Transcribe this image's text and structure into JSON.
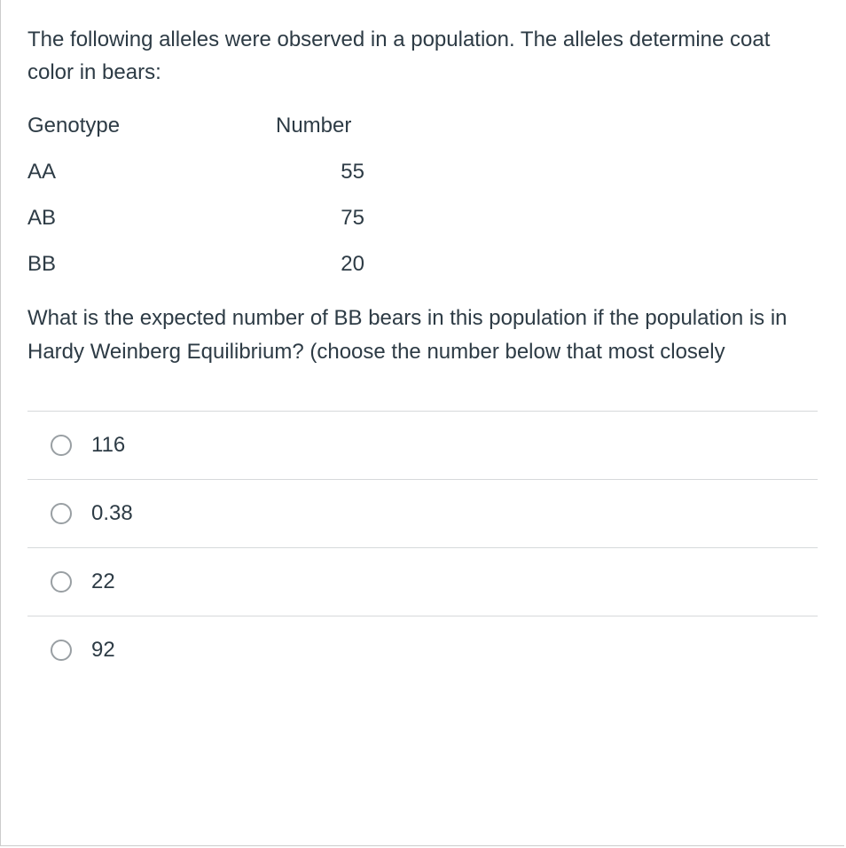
{
  "question": {
    "intro": "The following alleles were observed in a population.  The alleles determine coat color in bears:",
    "followup": "What is the expected number of BB bears in this population if the population is in Hardy Weinberg Equilibrium?   (choose the number below that most closely"
  },
  "table": {
    "headers": {
      "genotype": "Genotype",
      "number": "Number"
    },
    "rows": [
      {
        "genotype": "AA",
        "number": "55"
      },
      {
        "genotype": "AB",
        "number": "75"
      },
      {
        "genotype": "BB",
        "number": "20"
      }
    ]
  },
  "options": [
    {
      "label": "116"
    },
    {
      "label": "0.38"
    },
    {
      "label": "22"
    },
    {
      "label": "92"
    }
  ],
  "styling": {
    "text_color": "#2d3b45",
    "border_color": "#cccccc",
    "option_divider_color": "#d6d9db",
    "radio_border_color": "#999fa3",
    "background_color": "#ffffff",
    "font_size_body": 24,
    "container_width": 952,
    "container_height": 954
  }
}
